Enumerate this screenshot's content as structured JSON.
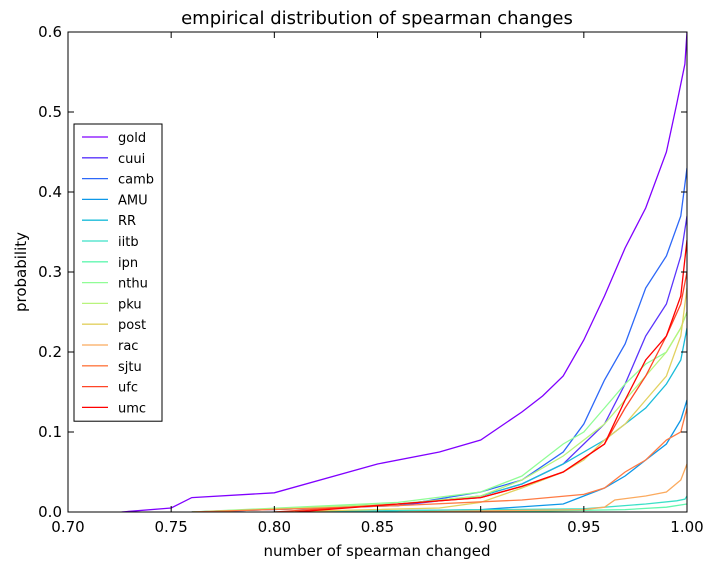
{
  "chart_data": {
    "type": "line",
    "title": "empirical distribution of spearman changes",
    "xlabel": "number of spearman changed",
    "ylabel": "probability",
    "xlim": [
      0.7,
      1.0
    ],
    "ylim": [
      0.0,
      0.6
    ],
    "xticks": [
      "0.70",
      "0.75",
      "0.80",
      "0.85",
      "0.90",
      "0.95",
      "1.00"
    ],
    "yticks": [
      "0.0",
      "0.1",
      "0.2",
      "0.3",
      "0.4",
      "0.5",
      "0.6"
    ],
    "grid": false,
    "legend": "center-left",
    "series": [
      {
        "name": "gold",
        "color": "#8000ff",
        "points": [
          [
            0.726,
            0.0
          ],
          [
            0.75,
            0.005
          ],
          [
            0.76,
            0.018
          ],
          [
            0.8,
            0.024
          ],
          [
            0.85,
            0.06
          ],
          [
            0.88,
            0.075
          ],
          [
            0.9,
            0.09
          ],
          [
            0.92,
            0.125
          ],
          [
            0.93,
            0.145
          ],
          [
            0.94,
            0.17
          ],
          [
            0.95,
            0.215
          ],
          [
            0.96,
            0.27
          ],
          [
            0.97,
            0.33
          ],
          [
            0.98,
            0.38
          ],
          [
            0.99,
            0.45
          ],
          [
            0.995,
            0.51
          ],
          [
            0.999,
            0.56
          ],
          [
            1.0,
            0.6
          ]
        ]
      },
      {
        "name": "cuui",
        "color": "#5a34fc",
        "points": [
          [
            0.76,
            0.0
          ],
          [
            0.86,
            0.008
          ],
          [
            0.9,
            0.02
          ],
          [
            0.92,
            0.035
          ],
          [
            0.94,
            0.06
          ],
          [
            0.96,
            0.11
          ],
          [
            0.97,
            0.16
          ],
          [
            0.98,
            0.22
          ],
          [
            0.99,
            0.26
          ],
          [
            0.997,
            0.32
          ],
          [
            1.0,
            0.37
          ]
        ]
      },
      {
        "name": "camb",
        "color": "#2d68f8",
        "points": [
          [
            0.76,
            0.0
          ],
          [
            0.86,
            0.008
          ],
          [
            0.9,
            0.025
          ],
          [
            0.92,
            0.04
          ],
          [
            0.94,
            0.075
          ],
          [
            0.95,
            0.11
          ],
          [
            0.96,
            0.165
          ],
          [
            0.97,
            0.21
          ],
          [
            0.98,
            0.28
          ],
          [
            0.99,
            0.32
          ],
          [
            0.997,
            0.37
          ],
          [
            1.0,
            0.43
          ]
        ]
      },
      {
        "name": "AMU",
        "color": "#0d97e8",
        "points": [
          [
            0.8,
            0.0
          ],
          [
            0.9,
            0.003
          ],
          [
            0.94,
            0.01
          ],
          [
            0.96,
            0.03
          ],
          [
            0.97,
            0.045
          ],
          [
            0.98,
            0.065
          ],
          [
            0.99,
            0.085
          ],
          [
            0.997,
            0.115
          ],
          [
            1.0,
            0.14
          ]
        ]
      },
      {
        "name": "RR",
        "color": "#1bbcd9",
        "points": [
          [
            0.76,
            0.0
          ],
          [
            0.86,
            0.01
          ],
          [
            0.9,
            0.02
          ],
          [
            0.92,
            0.035
          ],
          [
            0.94,
            0.06
          ],
          [
            0.96,
            0.09
          ],
          [
            0.98,
            0.13
          ],
          [
            0.99,
            0.16
          ],
          [
            0.997,
            0.19
          ],
          [
            1.0,
            0.23
          ]
        ]
      },
      {
        "name": "iitb",
        "color": "#3ce0c7",
        "points": [
          [
            0.8,
            0.0
          ],
          [
            0.95,
            0.004
          ],
          [
            0.98,
            0.01
          ],
          [
            0.995,
            0.014
          ],
          [
            0.999,
            0.016
          ],
          [
            1.0,
            0.02
          ]
        ]
      },
      {
        "name": "ipn",
        "color": "#62f7b0",
        "points": [
          [
            0.9,
            0.0
          ],
          [
            0.97,
            0.003
          ],
          [
            0.99,
            0.006
          ],
          [
            1.0,
            0.01
          ]
        ]
      },
      {
        "name": "nthu",
        "color": "#90fd96",
        "points": [
          [
            0.76,
            0.0
          ],
          [
            0.86,
            0.012
          ],
          [
            0.9,
            0.025
          ],
          [
            0.92,
            0.045
          ],
          [
            0.93,
            0.065
          ],
          [
            0.94,
            0.085
          ],
          [
            0.95,
            0.1
          ],
          [
            0.96,
            0.13
          ],
          [
            0.97,
            0.16
          ],
          [
            0.98,
            0.185
          ],
          [
            0.99,
            0.2
          ],
          [
            0.997,
            0.23
          ],
          [
            1.0,
            0.25
          ]
        ]
      },
      {
        "name": "pku",
        "color": "#b8f47c",
        "points": [
          [
            0.76,
            0.0
          ],
          [
            0.86,
            0.01
          ],
          [
            0.9,
            0.02
          ],
          [
            0.92,
            0.04
          ],
          [
            0.94,
            0.07
          ],
          [
            0.96,
            0.11
          ],
          [
            0.97,
            0.14
          ],
          [
            0.98,
            0.17
          ],
          [
            0.99,
            0.2
          ],
          [
            0.997,
            0.23
          ],
          [
            1.0,
            0.25
          ]
        ]
      },
      {
        "name": "post",
        "color": "#e2d160",
        "points": [
          [
            0.8,
            0.0
          ],
          [
            0.88,
            0.005
          ],
          [
            0.9,
            0.012
          ],
          [
            0.92,
            0.03
          ],
          [
            0.94,
            0.05
          ],
          [
            0.95,
            0.065
          ],
          [
            0.96,
            0.09
          ],
          [
            0.97,
            0.11
          ],
          [
            0.98,
            0.14
          ],
          [
            0.99,
            0.17
          ],
          [
            0.997,
            0.22
          ],
          [
            1.0,
            0.28
          ]
        ]
      },
      {
        "name": "rac",
        "color": "#fbaa5e",
        "points": [
          [
            0.86,
            0.0
          ],
          [
            0.95,
            0.003
          ],
          [
            0.96,
            0.006
          ],
          [
            0.965,
            0.015
          ],
          [
            0.98,
            0.02
          ],
          [
            0.99,
            0.025
          ],
          [
            0.997,
            0.04
          ],
          [
            1.0,
            0.06
          ]
        ]
      },
      {
        "name": "sjtu",
        "color": "#ff7a43",
        "points": [
          [
            0.76,
            0.0
          ],
          [
            0.86,
            0.008
          ],
          [
            0.92,
            0.015
          ],
          [
            0.95,
            0.022
          ],
          [
            0.96,
            0.03
          ],
          [
            0.97,
            0.05
          ],
          [
            0.98,
            0.065
          ],
          [
            0.99,
            0.09
          ],
          [
            0.997,
            0.1
          ],
          [
            1.0,
            0.13
          ]
        ]
      },
      {
        "name": "ufc",
        "color": "#ff4527",
        "points": [
          [
            0.8,
            0.0
          ],
          [
            0.86,
            0.01
          ],
          [
            0.9,
            0.018
          ],
          [
            0.92,
            0.032
          ],
          [
            0.94,
            0.05
          ],
          [
            0.96,
            0.085
          ],
          [
            0.97,
            0.13
          ],
          [
            0.98,
            0.17
          ],
          [
            0.99,
            0.22
          ],
          [
            0.997,
            0.26
          ],
          [
            1.0,
            0.3
          ]
        ]
      },
      {
        "name": "umc",
        "color": "#ff0000",
        "points": [
          [
            0.81,
            0.0
          ],
          [
            0.86,
            0.01
          ],
          [
            0.9,
            0.018
          ],
          [
            0.92,
            0.032
          ],
          [
            0.94,
            0.05
          ],
          [
            0.96,
            0.085
          ],
          [
            0.97,
            0.14
          ],
          [
            0.98,
            0.19
          ],
          [
            0.99,
            0.22
          ],
          [
            0.997,
            0.27
          ],
          [
            1.0,
            0.34
          ]
        ]
      }
    ]
  }
}
